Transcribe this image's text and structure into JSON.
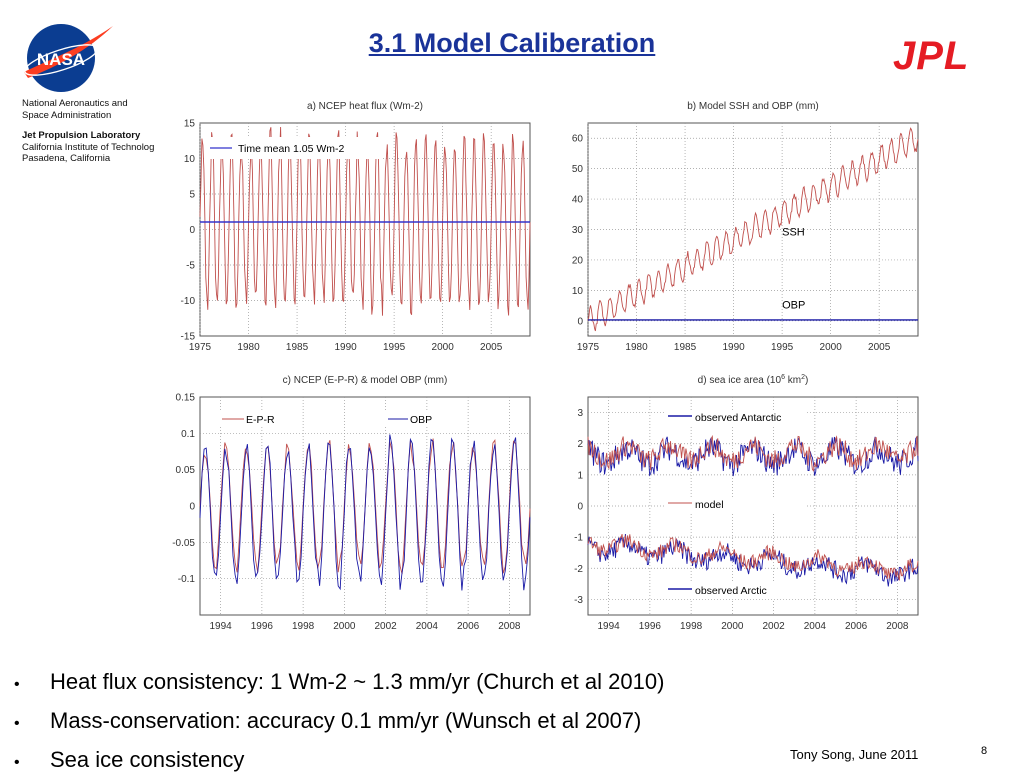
{
  "header": {
    "title": "3.1 Model Caliberation",
    "nasa_logo_text": "NASA",
    "jpl_logo_text": "JPL",
    "org_lines": [
      "National Aeronautics and",
      "Space Administration",
      "Jet Propulsion Laboratory",
      "California Institute of Technolog",
      "Pasadena, California"
    ]
  },
  "bullets": [
    "Heat flux consistency: 1 Wm-2 ~ 1.3 mm/yr (Church et al 2010)",
    "Mass-conservation: accuracy 0.1 mm/yr (Wunsch et al 2007)",
    "Sea ice consistency"
  ],
  "footer": {
    "author": "Tony Song, June 2011",
    "page": "8"
  },
  "colors": {
    "title": "#1a3399",
    "model_red": "#c0504d",
    "obs_blue": "#1a1aa6",
    "jpl_red": "#e51c24"
  },
  "chart_data": [
    {
      "type": "line",
      "title": "a) NCEP heat flux (Wm-2)",
      "xlim": [
        1975,
        2009
      ],
      "ylim": [
        -15,
        15
      ],
      "xticks": [
        "1975",
        "1980",
        "1985",
        "1990",
        "1995",
        "2000",
        "2005"
      ],
      "yticks": [
        "15",
        "10",
        "5",
        "0",
        "-5",
        "-10",
        "-15"
      ],
      "grid": true,
      "legend": "top-left",
      "series": [
        {
          "name": "",
          "color": "#c0504d",
          "form": "seasonal",
          "period_years": 1,
          "amplitude": 11.5,
          "mean": 1.05
        },
        {
          "name": "Time mean 1.05 Wm-2",
          "color": "#3333cc",
          "form": "constant",
          "value": 1.05
        }
      ]
    },
    {
      "type": "line",
      "title": "b) Model SSH and OBP (mm)",
      "xlim": [
        1975,
        2009
      ],
      "ylim": [
        -5,
        65
      ],
      "xticks": [
        "1975",
        "1980",
        "1985",
        "1990",
        "1995",
        "2000",
        "2005"
      ],
      "yticks": [
        "60",
        "50",
        "40",
        "30",
        "20",
        "10",
        "0"
      ],
      "grid": true,
      "annotations": [
        "SSH",
        "OBP"
      ],
      "series": [
        {
          "name": "SSH",
          "color": "#c0504d",
          "form": "trend_seasonal",
          "start": 0,
          "end": 60,
          "amplitude": 4
        },
        {
          "name": "OBP",
          "color": "#1a1aa6",
          "form": "constant",
          "value": 0.3
        }
      ]
    },
    {
      "type": "line",
      "title": "c) NCEP (E-P-R) & model OBP (mm)",
      "xlim": [
        1993,
        2009
      ],
      "ylim": [
        -0.15,
        0.15
      ],
      "xticks": [
        "1994",
        "1996",
        "1998",
        "2000",
        "2002",
        "2004",
        "2006",
        "2008"
      ],
      "yticks": [
        "0.15",
        "0.1",
        "0.05",
        "0",
        "-0.05",
        "-0.1"
      ],
      "grid": true,
      "series": [
        {
          "name": "E-P-R",
          "color": "#c0504d",
          "form": "seasonal",
          "period_years": 1,
          "amplitude": 0.085,
          "mean": 0.0
        },
        {
          "name": "OBP",
          "color": "#1a1aa6",
          "form": "seasonal",
          "period_years": 1,
          "amplitude": 0.095,
          "mean": -0.01
        }
      ]
    },
    {
      "type": "line",
      "title": "d) sea ice area (10",
      "title_sup": "6",
      "title_tail": " km",
      "title_sup2": "2",
      "title_end": ")",
      "xlim": [
        1993,
        2009
      ],
      "ylim": [
        -3.5,
        3.5
      ],
      "xticks": [
        "1994",
        "1996",
        "1998",
        "2000",
        "2002",
        "2004",
        "2006",
        "2008"
      ],
      "yticks": [
        "3",
        "2",
        "1",
        "0",
        "-1",
        "-2",
        "-3"
      ],
      "grid": true,
      "series": [
        {
          "name": "observed Antarctic",
          "color": "#1a1aa6",
          "form": "noisy",
          "mean": 1.6,
          "amplitude": 0.6
        },
        {
          "name": "model",
          "color": "#c0504d",
          "form": "noisy",
          "mean": 1.7,
          "amplitude": 0.5
        },
        {
          "name": "observed Arctic",
          "color": "#1a1aa6",
          "form": "noisy_trend",
          "start": -1.3,
          "end": -2.2,
          "amplitude": 0.45
        },
        {
          "name": "",
          "color": "#c0504d",
          "form": "noisy_trend",
          "start": -1.2,
          "end": -2.1,
          "amplitude": 0.35
        }
      ]
    }
  ]
}
